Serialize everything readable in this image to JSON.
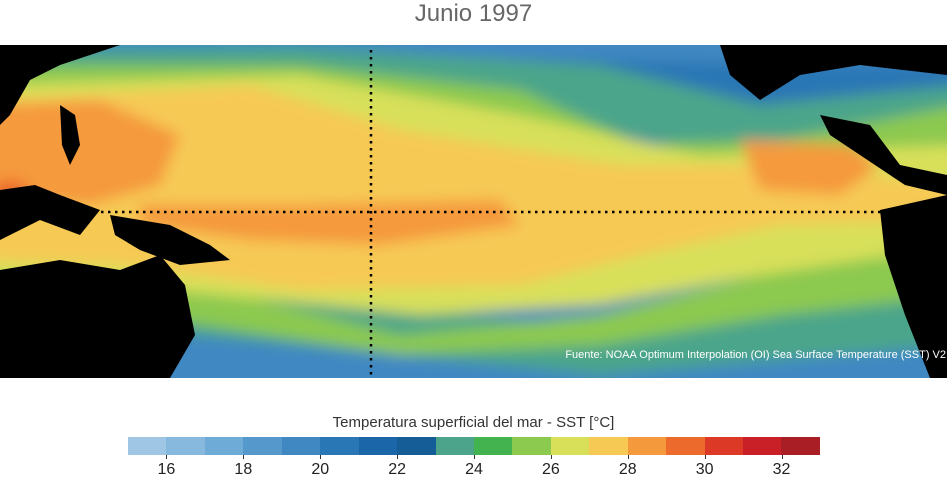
{
  "title": "Junio 1997",
  "source": "Fuente: NOAA Optimum Interpolation (OI) Sea Surface Temperature (SST) V2",
  "colorbar": {
    "title": "Temperatura superficial del mar - SST  [°C]",
    "min": 15,
    "max": 33,
    "colors": [
      "#9fc6e4",
      "#87b9de",
      "#6eabd6",
      "#5599cc",
      "#3f88c2",
      "#2a77b5",
      "#1a66a8",
      "#145d96",
      "#4ca58a",
      "#43b34f",
      "#8cc94f",
      "#d8e05a",
      "#f6c954",
      "#f59a3c",
      "#ec6a2c",
      "#dc3a26",
      "#c91f26",
      "#a91d24"
    ],
    "ticks": [
      16,
      18,
      20,
      22,
      24,
      26,
      28,
      30,
      32
    ]
  }
}
